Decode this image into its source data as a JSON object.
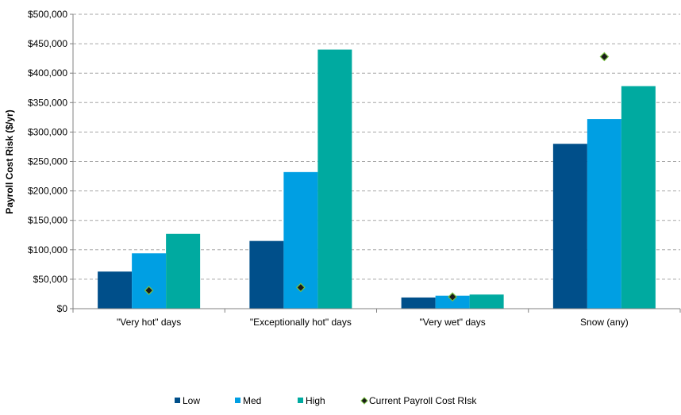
{
  "chart_data": {
    "type": "bar",
    "ylabel": "Payroll Cost Risk ($/yr)",
    "ylim": [
      0,
      500000
    ],
    "ytick_step": 50000,
    "yticks": [
      "$0",
      "$50,000",
      "$100,000",
      "$150,000",
      "$200,000",
      "$250,000",
      "$300,000",
      "$350,000",
      "$400,000",
      "$450,000",
      "$500,000"
    ],
    "categories": [
      "\"Very hot\" days",
      "\"Exceptionally  hot\" days",
      "\"Very wet\" days",
      "Snow (any)"
    ],
    "series": [
      {
        "name": "Low",
        "color": "#004f8a",
        "values": [
          63000,
          115000,
          19000,
          280000
        ]
      },
      {
        "name": "Med",
        "color": "#009fe3",
        "values": [
          94000,
          232000,
          22000,
          322000
        ]
      },
      {
        "name": "High",
        "color": "#00aaa0",
        "values": [
          127000,
          440000,
          24000,
          378000
        ]
      }
    ],
    "marker_series": {
      "name": "Current Payroll Cost RIsk",
      "color": "#1a1a1a",
      "fill": "#7ac143",
      "values": [
        31000,
        36000,
        20000,
        428000
      ]
    },
    "grid": true,
    "legend": "bottom"
  }
}
